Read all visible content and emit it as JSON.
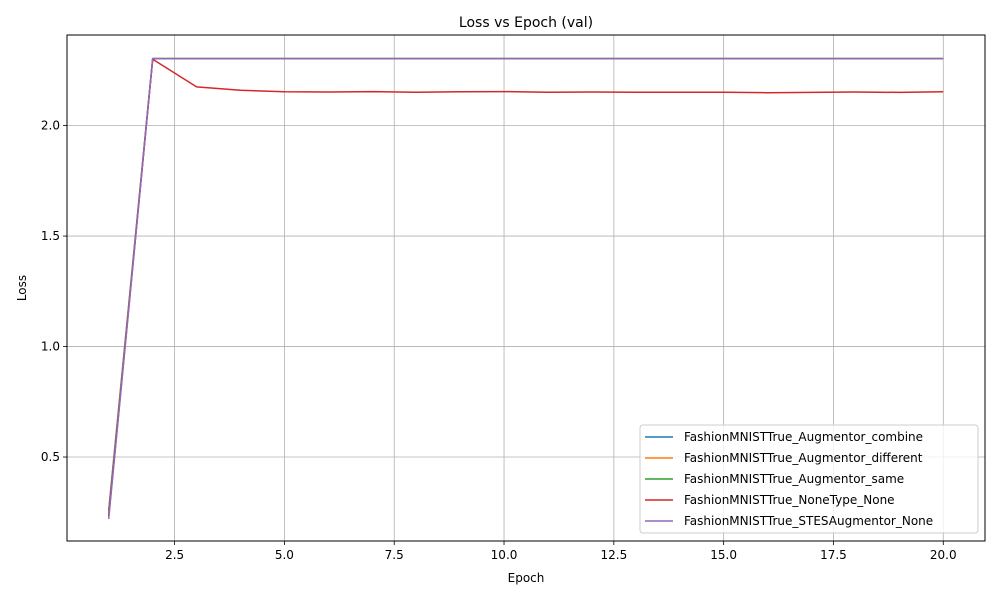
{
  "chart_data": {
    "type": "line",
    "title": "Loss vs Epoch (val)",
    "xlabel": "Epoch",
    "ylabel": "Loss",
    "xlim": [
      0.05,
      20.95
    ],
    "ylim": [
      0.12,
      2.41
    ],
    "xticks": [
      2.5,
      5.0,
      7.5,
      10.0,
      12.5,
      15.0,
      17.5,
      20.0
    ],
    "xtick_labels": [
      "2.5",
      "5.0",
      "7.5",
      "10.0",
      "12.5",
      "15.0",
      "17.5",
      "20.0"
    ],
    "yticks": [
      0.5,
      1.0,
      1.5,
      2.0
    ],
    "ytick_labels": [
      "0.5",
      "1.0",
      "1.5",
      "2.0"
    ],
    "grid": true,
    "legend_position": "bottom-right",
    "x": [
      1,
      2,
      3,
      4,
      5,
      6,
      7,
      8,
      9,
      10,
      11,
      12,
      13,
      14,
      15,
      16,
      17,
      18,
      19,
      20
    ],
    "series": [
      {
        "name": "FashionMNISTTrue_Augmentor_combine",
        "color": "#1f77b4",
        "values": [
          0.26,
          2.303,
          2.303,
          2.303,
          2.303,
          2.303,
          2.303,
          2.303,
          2.303,
          2.303,
          2.303,
          2.303,
          2.303,
          2.303,
          2.303,
          2.303,
          2.303,
          2.303,
          2.303,
          2.303
        ]
      },
      {
        "name": "FashionMNISTTrue_Augmentor_different",
        "color": "#ff7f0e",
        "values": [
          0.25,
          2.303,
          2.303,
          2.303,
          2.303,
          2.303,
          2.303,
          2.303,
          2.303,
          2.303,
          2.303,
          2.303,
          2.303,
          2.303,
          2.303,
          2.303,
          2.303,
          2.303,
          2.303,
          2.303
        ]
      },
      {
        "name": "FashionMNISTTrue_Augmentor_same",
        "color": "#2ca02c",
        "values": [
          0.24,
          2.303,
          2.303,
          2.303,
          2.303,
          2.303,
          2.303,
          2.303,
          2.303,
          2.303,
          2.303,
          2.303,
          2.303,
          2.303,
          2.303,
          2.303,
          2.303,
          2.303,
          2.303,
          2.303
        ]
      },
      {
        "name": "FashionMNISTTrue_NoneType_None",
        "color": "#d62728",
        "values": [
          0.23,
          2.3,
          2.175,
          2.16,
          2.153,
          2.152,
          2.154,
          2.151,
          2.153,
          2.154,
          2.151,
          2.152,
          2.151,
          2.151,
          2.151,
          2.149,
          2.15,
          2.152,
          2.15,
          2.153
        ]
      },
      {
        "name": "FashionMNISTTrue_STESAugmentor_None",
        "color": "#9467bd",
        "values": [
          0.22,
          2.303,
          2.303,
          2.303,
          2.303,
          2.303,
          2.303,
          2.303,
          2.303,
          2.303,
          2.303,
          2.303,
          2.303,
          2.303,
          2.303,
          2.303,
          2.303,
          2.303,
          2.303,
          2.303
        ]
      }
    ]
  }
}
